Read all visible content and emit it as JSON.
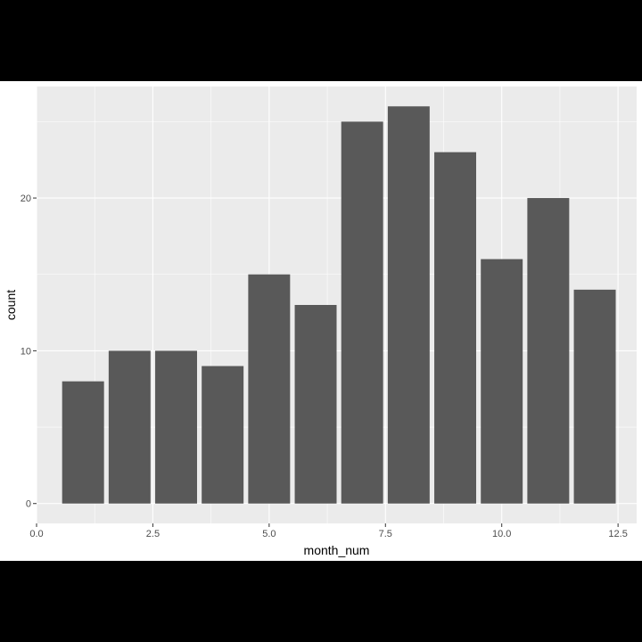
{
  "chart_data": {
    "type": "bar",
    "xlabel": "month_num",
    "ylabel": "count",
    "x": [
      1,
      2,
      3,
      4,
      5,
      6,
      7,
      8,
      9,
      10,
      11,
      12
    ],
    "values": [
      8,
      10,
      10,
      9,
      15,
      13,
      25,
      26,
      23,
      16,
      20,
      14
    ],
    "xlim": [
      0,
      12.9
    ],
    "ylim": [
      -1.3,
      27.3
    ],
    "x_ticks": [
      0,
      2.5,
      5,
      7.5,
      10,
      12.5
    ],
    "x_tick_labels": [
      "0.0",
      "2.5",
      "5.0",
      "7.5",
      "10.0",
      "12.5"
    ],
    "y_ticks": [
      0,
      10,
      20
    ],
    "y_tick_labels": [
      "0",
      "10",
      "20"
    ],
    "bar_width": 0.9,
    "grid": true,
    "colors": {
      "panel_background": "#ebebeb",
      "bar_fill": "#595959",
      "grid": "#ffffff",
      "tick": "#333333",
      "tick_label": "#4d4d4d",
      "page_background": "#000000"
    }
  }
}
